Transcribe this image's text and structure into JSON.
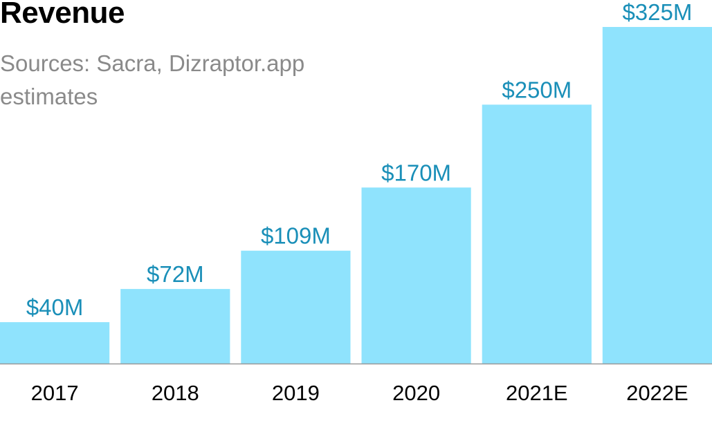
{
  "chart_data": {
    "type": "bar",
    "title": "Revenue",
    "subtitle": "Sources: Sacra, Dizraptor.app estimates",
    "categories": [
      "2017",
      "2018",
      "2019",
      "2020",
      "2021E",
      "2022E"
    ],
    "values": [
      40,
      72,
      109,
      170,
      250,
      325
    ],
    "data_labels": [
      "$40M",
      "$72M",
      "$109M",
      "$170M",
      "$250M",
      "$325M"
    ],
    "ylim": [
      0,
      325
    ],
    "grid": false,
    "legend": "none",
    "colors": {
      "bar": "#8fe3fd",
      "label": "#1a8fb8",
      "axis": "#999999"
    }
  }
}
